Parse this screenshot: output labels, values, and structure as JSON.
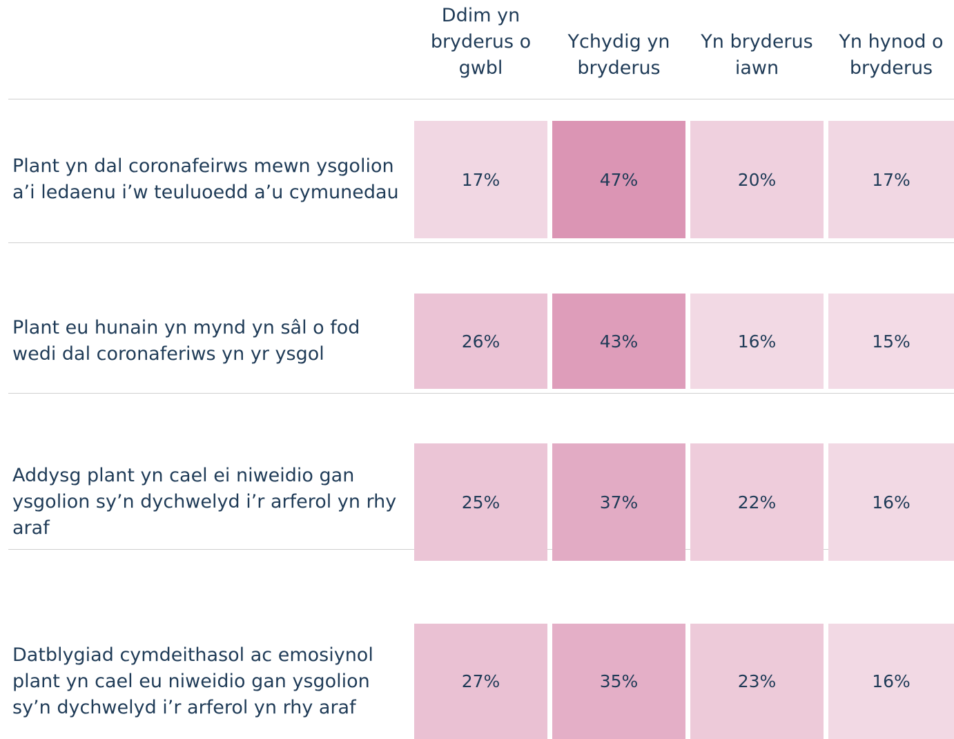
{
  "chart_data": {
    "type": "heatmap",
    "columns": [
      "Ddim yn bryderus o gwbl",
      "Ychydig yn bryderus",
      "Yn bryderus iawn",
      "Yn hynod o bryderus"
    ],
    "rows": [
      "Plant yn dal coronafeirws mewn ysgolion a’i ledaenu i’w teuluoedd a’u cymunedau",
      "Plant eu hunain yn mynd yn sâl o fod wedi dal coronaferiws yn yr ysgol",
      "Addysg plant yn cael ei niweidio gan ysgolion sy’n dychwelyd i’r arferol yn rhy araf",
      "Datblygiad cymdeithasol ac emosiynol plant yn cael eu niweidio gan ysgolion sy’n dychwelyd i’r arferol yn rhy araf"
    ],
    "values": [
      [
        17,
        47,
        20,
        17
      ],
      [
        26,
        43,
        16,
        15
      ],
      [
        25,
        37,
        22,
        16
      ],
      [
        27,
        35,
        23,
        16
      ]
    ],
    "value_labels": [
      [
        "17%",
        "47%",
        "20%",
        "17%"
      ],
      [
        "26%",
        "43%",
        "16%",
        "15%"
      ],
      [
        "25%",
        "37%",
        "22%",
        "16%"
      ],
      [
        "27%",
        "35%",
        "23%",
        "16%"
      ]
    ],
    "color": "#d98fb0"
  }
}
